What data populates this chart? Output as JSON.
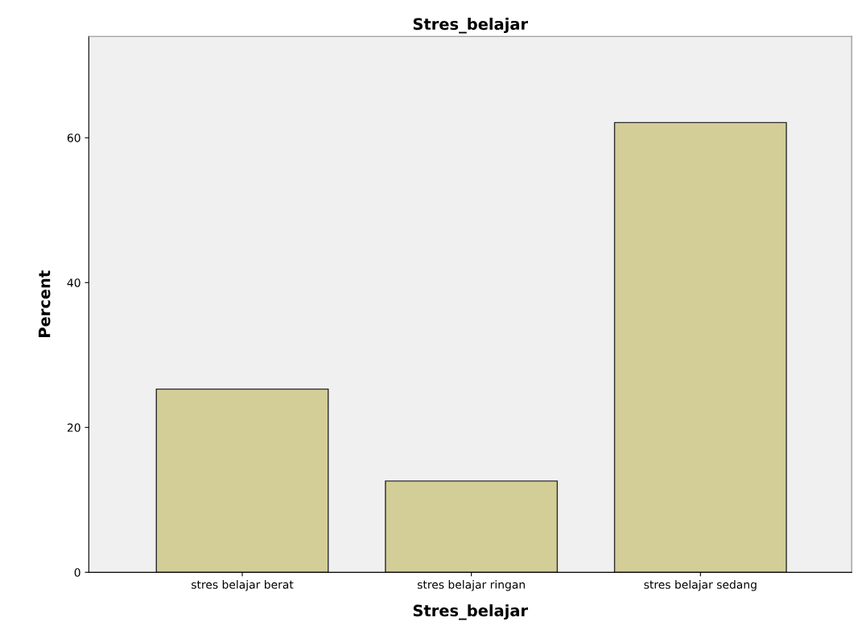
{
  "chart_data": {
    "type": "bar",
    "title": "Stres_belajar",
    "xlabel": "Stres_belajar",
    "ylabel": "Percent",
    "categories": [
      "stres belajar berat",
      "stres belajar ringan",
      "stres belajar sedang"
    ],
    "values": [
      25.3,
      12.6,
      62.1
    ],
    "color": "#d3ce97",
    "ylim": [
      0,
      74
    ],
    "yticks": [
      0,
      20,
      40,
      60
    ],
    "grid": false,
    "legend": false
  }
}
